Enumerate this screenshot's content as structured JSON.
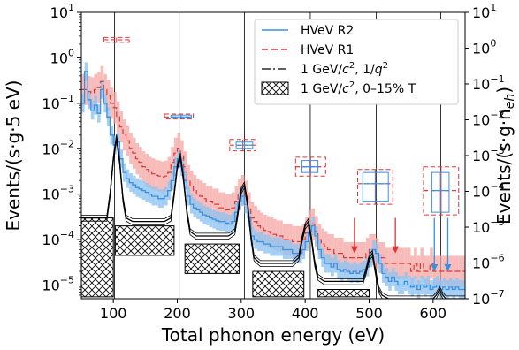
{
  "chart_data": {
    "type": "line",
    "title": "",
    "xlabel": "Total phonon energy (eV)",
    "ylabel_left": "Events/(s·g·5 eV)",
    "ylabel_right": "Events/(s·g·n",
    "ylabel_right_sub": "eh",
    "ylabel_right_close": ")",
    "xlim": [
      50,
      650
    ],
    "ylim_left": [
      5e-06,
      10
    ],
    "ylim_right": [
      1e-07,
      10
    ],
    "yscale": "log",
    "grid": false,
    "legend_position": "top-right",
    "x_ticks": [
      100,
      200,
      300,
      400,
      500,
      600
    ],
    "y_left_ticks": [
      {
        "base": "10",
        "exp": "1",
        "v": 10
      },
      {
        "base": "10",
        "exp": "0",
        "v": 1
      },
      {
        "base": "10",
        "exp": "−1",
        "v": 0.1
      },
      {
        "base": "10",
        "exp": "−2",
        "v": 0.01
      },
      {
        "base": "10",
        "exp": "−3",
        "v": 0.001
      },
      {
        "base": "10",
        "exp": "−4",
        "v": 0.0001
      },
      {
        "base": "10",
        "exp": "−5",
        "v": 1e-05
      }
    ],
    "y_right_ticks": [
      {
        "base": "10",
        "exp": "1",
        "v": 10
      },
      {
        "base": "10",
        "exp": "0",
        "v": 1
      },
      {
        "base": "10",
        "exp": "−1",
        "v": 0.1
      },
      {
        "base": "10",
        "exp": "−2",
        "v": 0.01
      },
      {
        "base": "10",
        "exp": "−3",
        "v": 0.001
      },
      {
        "base": "10",
        "exp": "−4",
        "v": 0.0001
      },
      {
        "base": "10",
        "exp": "−5",
        "v": 1e-05
      },
      {
        "base": "10",
        "exp": "−6",
        "v": 1e-06
      },
      {
        "base": "10",
        "exp": "−7",
        "v": 1e-07
      }
    ],
    "vlines_x": [
      102,
      203,
      305,
      408,
      511,
      612
    ],
    "legend": [
      {
        "label": "HVeV R2",
        "color": "#3a8fe0",
        "style": "solid"
      },
      {
        "label": "HVeV R1",
        "color": "#d9373a",
        "style": "dashed"
      },
      {
        "label_prefix": "1 GeV/",
        "label_c": "c",
        "label_mid": ", 1/",
        "label_q": "q",
        "color": "#000000",
        "style": "dashdot"
      },
      {
        "label_prefix": "1 GeV/",
        "label_c": "c",
        "label_suffix": ", 0–15% T",
        "color": "#000000",
        "style": "hatched"
      }
    ],
    "colors": {
      "r2": "#3a8fe0",
      "r1": "#d9373a",
      "r1_band": "#f4a6a2",
      "r2_band": "#8fc3f1"
    },
    "series": [
      {
        "name": "HVeV R2",
        "x": [
          50,
          55,
          60,
          65,
          70,
          75,
          80,
          85,
          90,
          95,
          100,
          105,
          110,
          115,
          120,
          125,
          130,
          135,
          140,
          145,
          150,
          155,
          160,
          165,
          170,
          175,
          180,
          185,
          190,
          195,
          200,
          205,
          210,
          215,
          220,
          225,
          230,
          235,
          240,
          245,
          250,
          255,
          260,
          265,
          270,
          275,
          280,
          285,
          290,
          295,
          300,
          305,
          310,
          315,
          320,
          325,
          330,
          335,
          340,
          345,
          350,
          355,
          360,
          365,
          370,
          375,
          380,
          385,
          390,
          395,
          400,
          405,
          410,
          415,
          420,
          425,
          430,
          435,
          440,
          445,
          450,
          455,
          460,
          465,
          470,
          475,
          480,
          485,
          490,
          495,
          500,
          505,
          510,
          515,
          520,
          525,
          530,
          535,
          540,
          545,
          550,
          555,
          560,
          565,
          570,
          575,
          580,
          585,
          590,
          595,
          600,
          605,
          610,
          615,
          620,
          625,
          630,
          635,
          640,
          645
        ],
        "y": [
          0.1,
          0.5,
          0.12,
          0.07,
          0.09,
          0.06,
          0.2,
          0.1,
          0.05,
          0.02,
          0.012,
          0.014,
          0.006,
          0.003,
          0.0022,
          0.0018,
          0.0016,
          0.0014,
          0.0013,
          0.0012,
          0.0011,
          0.001,
          0.0009,
          0.0009,
          0.0008,
          0.0008,
          0.0009,
          0.0012,
          0.002,
          0.004,
          0.006,
          0.004,
          0.002,
          0.0009,
          0.0006,
          0.0005,
          0.00045,
          0.0004,
          0.00035,
          0.00033,
          0.0003,
          0.00028,
          0.00026,
          0.00025,
          0.00025,
          0.00023,
          0.00022,
          0.00025,
          0.0004,
          0.0007,
          0.0009,
          0.0006,
          0.0003,
          0.00012,
          0.0001,
          9e-05,
          9e-05,
          8e-05,
          8e-05,
          7e-05,
          7e-05,
          7e-05,
          7e-05,
          6e-05,
          6e-05,
          6e-05,
          5e-05,
          5e-05,
          5e-05,
          6e-05,
          9e-05,
          0.00015,
          0.0002,
          0.00012,
          6e-05,
          4e-05,
          3e-05,
          3e-05,
          2.5e-05,
          3e-05,
          2.2e-05,
          2e-05,
          2.2e-05,
          2e-05,
          1.8e-05,
          2e-05,
          1.8e-05,
          2e-05,
          2.2e-05,
          2.5e-05,
          4e-05,
          6e-05,
          5e-05,
          3e-05,
          1.8e-05,
          1.5e-05,
          1.2e-05,
          1.5e-05,
          1.2e-05,
          1e-05,
          1e-05,
          1.2e-05,
          1e-05,
          9e-06,
          1e-05,
          8e-06,
          1e-05,
          9e-06,
          1e-05,
          8e-06,
          9e-06,
          1e-05,
          8e-06,
          9e-06,
          8e-06,
          9e-06,
          8e-06,
          9e-06,
          8e-06,
          8e-06
        ]
      },
      {
        "name": "HVeV R1",
        "x": [
          50,
          55,
          60,
          65,
          70,
          75,
          80,
          85,
          90,
          95,
          100,
          105,
          110,
          115,
          120,
          125,
          130,
          135,
          140,
          145,
          150,
          155,
          160,
          165,
          170,
          175,
          180,
          185,
          190,
          195,
          200,
          205,
          210,
          215,
          220,
          225,
          230,
          235,
          240,
          245,
          250,
          255,
          260,
          265,
          270,
          275,
          280,
          285,
          290,
          295,
          300,
          305,
          310,
          315,
          320,
          325,
          330,
          335,
          340,
          345,
          350,
          355,
          360,
          365,
          370,
          375,
          380,
          385,
          390,
          395,
          400,
          405,
          410,
          415,
          420,
          425,
          430,
          435,
          440,
          445,
          450,
          455,
          460,
          465,
          470,
          475,
          480,
          485,
          490,
          495,
          500,
          505,
          510,
          515,
          520,
          525,
          530,
          535,
          540,
          545,
          550,
          555,
          560,
          565,
          570,
          575,
          580,
          585,
          590,
          595,
          600,
          605,
          610,
          615,
          620,
          625,
          630,
          635,
          640,
          645
        ],
        "y": [
          0.2,
          0.2,
          0.18,
          0.17,
          0.2,
          0.22,
          0.3,
          0.2,
          0.15,
          0.1,
          0.08,
          0.05,
          0.03,
          0.02,
          0.015,
          0.01,
          0.008,
          0.006,
          0.005,
          0.004,
          0.0035,
          0.003,
          0.0028,
          0.0026,
          0.0025,
          0.0024,
          0.0025,
          0.003,
          0.005,
          0.008,
          0.01,
          0.007,
          0.004,
          0.002,
          0.0015,
          0.0012,
          0.001,
          0.0009,
          0.0008,
          0.0007,
          0.0007,
          0.0006,
          0.0006,
          0.0005,
          0.0005,
          0.00045,
          0.00045,
          0.0005,
          0.0007,
          0.001,
          0.0012,
          0.0009,
          0.0005,
          0.0003,
          0.00025,
          0.0002,
          0.00018,
          0.00016,
          0.00015,
          0.00014,
          0.00013,
          0.00012,
          0.00012,
          0.0001,
          0.0001,
          0.0001,
          9e-05,
          9e-05,
          9e-05,
          0.0001,
          0.00014,
          0.0002,
          0.00022,
          0.00015,
          0.0001,
          8e-05,
          7e-05,
          6e-05,
          6e-05,
          5e-05,
          5e-05,
          5e-05,
          4e-05,
          4e-05,
          4e-05,
          4e-05,
          4e-05,
          4e-05,
          4e-05,
          5e-05,
          6e-05,
          6e-05,
          5e-05,
          4e-05,
          4e-05,
          3e-05,
          3e-05,
          3e-05,
          3e-05,
          3e-05,
          3e-05,
          3e-05,
          3e-05,
          2e-05,
          3e-05,
          2e-05,
          3e-05,
          2e-05,
          2e-05,
          3e-05,
          2e-05,
          2e-05,
          2e-05,
          2e-05,
          2e-05,
          2e-05,
          2e-05,
          2e-05,
          2e-05,
          2e-05
        ]
      },
      {
        "name": "1 GeV/c², 1/q²",
        "x": [
          50,
          60,
          70,
          80,
          90,
          95,
          100,
          105,
          110,
          115,
          120,
          130,
          140,
          150,
          160,
          170,
          180,
          190,
          195,
          200,
          205,
          210,
          215,
          220,
          230,
          240,
          250,
          260,
          270,
          280,
          290,
          295,
          300,
          305,
          310,
          315,
          320,
          330,
          340,
          350,
          360,
          370,
          380,
          390,
          395,
          400,
          405,
          410,
          415,
          420,
          430,
          440,
          450,
          460,
          470,
          480,
          490,
          495,
          500,
          505,
          510,
          515,
          520,
          530,
          540,
          550,
          560,
          570,
          580,
          590,
          600,
          605,
          610,
          615,
          620,
          630,
          640,
          650
        ],
        "y": [
          0.0003,
          0.0003,
          0.0003,
          0.0003,
          0.0003,
          0.001,
          0.006,
          0.018,
          0.005,
          0.0008,
          0.0003,
          0.00025,
          0.00025,
          0.00025,
          0.00025,
          0.00025,
          0.00025,
          0.0003,
          0.001,
          0.004,
          0.007,
          0.002,
          0.0004,
          0.00015,
          0.00012,
          0.00012,
          0.00012,
          0.00012,
          0.00012,
          0.00012,
          0.00015,
          0.0004,
          0.0012,
          0.0016,
          0.0006,
          0.00012,
          4e-05,
          3e-05,
          3e-05,
          3e-05,
          3e-05,
          3e-05,
          3e-05,
          4e-05,
          0.0001,
          0.0002,
          0.00025,
          0.0001,
          3e-05,
          1.5e-05,
          1.2e-05,
          1.2e-05,
          1.2e-05,
          1.2e-05,
          1.2e-05,
          1.2e-05,
          1.2e-05,
          2e-05,
          4e-05,
          5e-05,
          2e-05,
          8e-06,
          6e-06,
          5e-06,
          5e-06,
          5e-06,
          5e-06,
          5e-06,
          5e-06,
          5e-06,
          5e-06,
          6e-06,
          8e-06,
          6e-06,
          5e-06,
          5e-06,
          5e-06,
          5e-06
        ]
      }
    ],
    "hatched_regions": [
      {
        "x": [
          50,
          100
        ],
        "y": [
          5.5e-06,
          0.0003
        ]
      },
      {
        "x": [
          103,
          195
        ],
        "y": [
          4.5e-05,
          0.0002
        ]
      },
      {
        "x": [
          212,
          297
        ],
        "y": [
          1.8e-05,
          8e-05
        ]
      },
      {
        "x": [
          318,
          398
        ],
        "y": [
          5.5e-06,
          2e-05
        ]
      },
      {
        "x": [
          420,
          500
        ],
        "y": [
          5.5e-06,
          8e-06
        ]
      }
    ],
    "upper_limit_boxes": [
      {
        "x": [
          85,
          125
        ],
        "y": 2.5,
        "color": "#d9373a",
        "style": "dashed",
        "box": [
          2.2,
          2.8
        ]
      },
      {
        "x": [
          180,
          225
        ],
        "y": 0.05,
        "color": "#d9373a",
        "style": "dashed",
        "box": [
          0.045,
          0.058
        ]
      },
      {
        "x": [
          190,
          222
        ],
        "y": 0.05,
        "color": "#3a8fe0",
        "style": "solid",
        "box": [
          0.047,
          0.055
        ]
      },
      {
        "x": [
          282,
          323
        ],
        "y": 0.012,
        "color": "#d9373a",
        "style": "dashed",
        "box": [
          0.009,
          0.016
        ]
      },
      {
        "x": [
          292,
          318
        ],
        "y": 0.012,
        "color": "#3a8fe0",
        "style": "solid",
        "box": [
          0.01,
          0.014
        ]
      },
      {
        "x": [
          385,
          432
        ],
        "y": 0.004,
        "color": "#d9373a",
        "style": "dashed",
        "box": [
          0.0025,
          0.0065
        ]
      },
      {
        "x": [
          395,
          420
        ],
        "y": 0.004,
        "color": "#3a8fe0",
        "style": "solid",
        "box": [
          0.003,
          0.0055
        ]
      },
      {
        "x": [
          482,
          537
        ],
        "y": 0.0017,
        "color": "#d9373a",
        "style": "dashed",
        "box": [
          0.0006,
          0.0035
        ]
      },
      {
        "x": [
          490,
          530
        ],
        "y": 0.0017,
        "color": "#3a8fe0",
        "style": "solid",
        "box": [
          0.0007,
          0.003
        ]
      },
      {
        "x": [
          585,
          640
        ],
        "y": 0.0012,
        "color": "#d9373a",
        "style": "dashed",
        "box": [
          0.00035,
          0.004
        ]
      },
      {
        "x": [
          598,
          625
        ],
        "y": 0.0012,
        "color": "#3a8fe0",
        "style": "solid",
        "box": [
          0.0004,
          0.003
        ]
      }
    ],
    "arrows": [
      {
        "x": 477,
        "y_from": 0.0003,
        "y_to": 5e-05,
        "color": "#d9373a"
      },
      {
        "x": 541,
        "y_from": 0.0003,
        "y_to": 5e-05,
        "color": "#d9373a"
      },
      {
        "x": 602,
        "y_from": 0.0003,
        "y_to": 2e-05,
        "color": "#3a8fe0"
      },
      {
        "x": 623,
        "y_from": 0.0003,
        "y_to": 2e-05,
        "color": "#3a8fe0"
      }
    ]
  }
}
